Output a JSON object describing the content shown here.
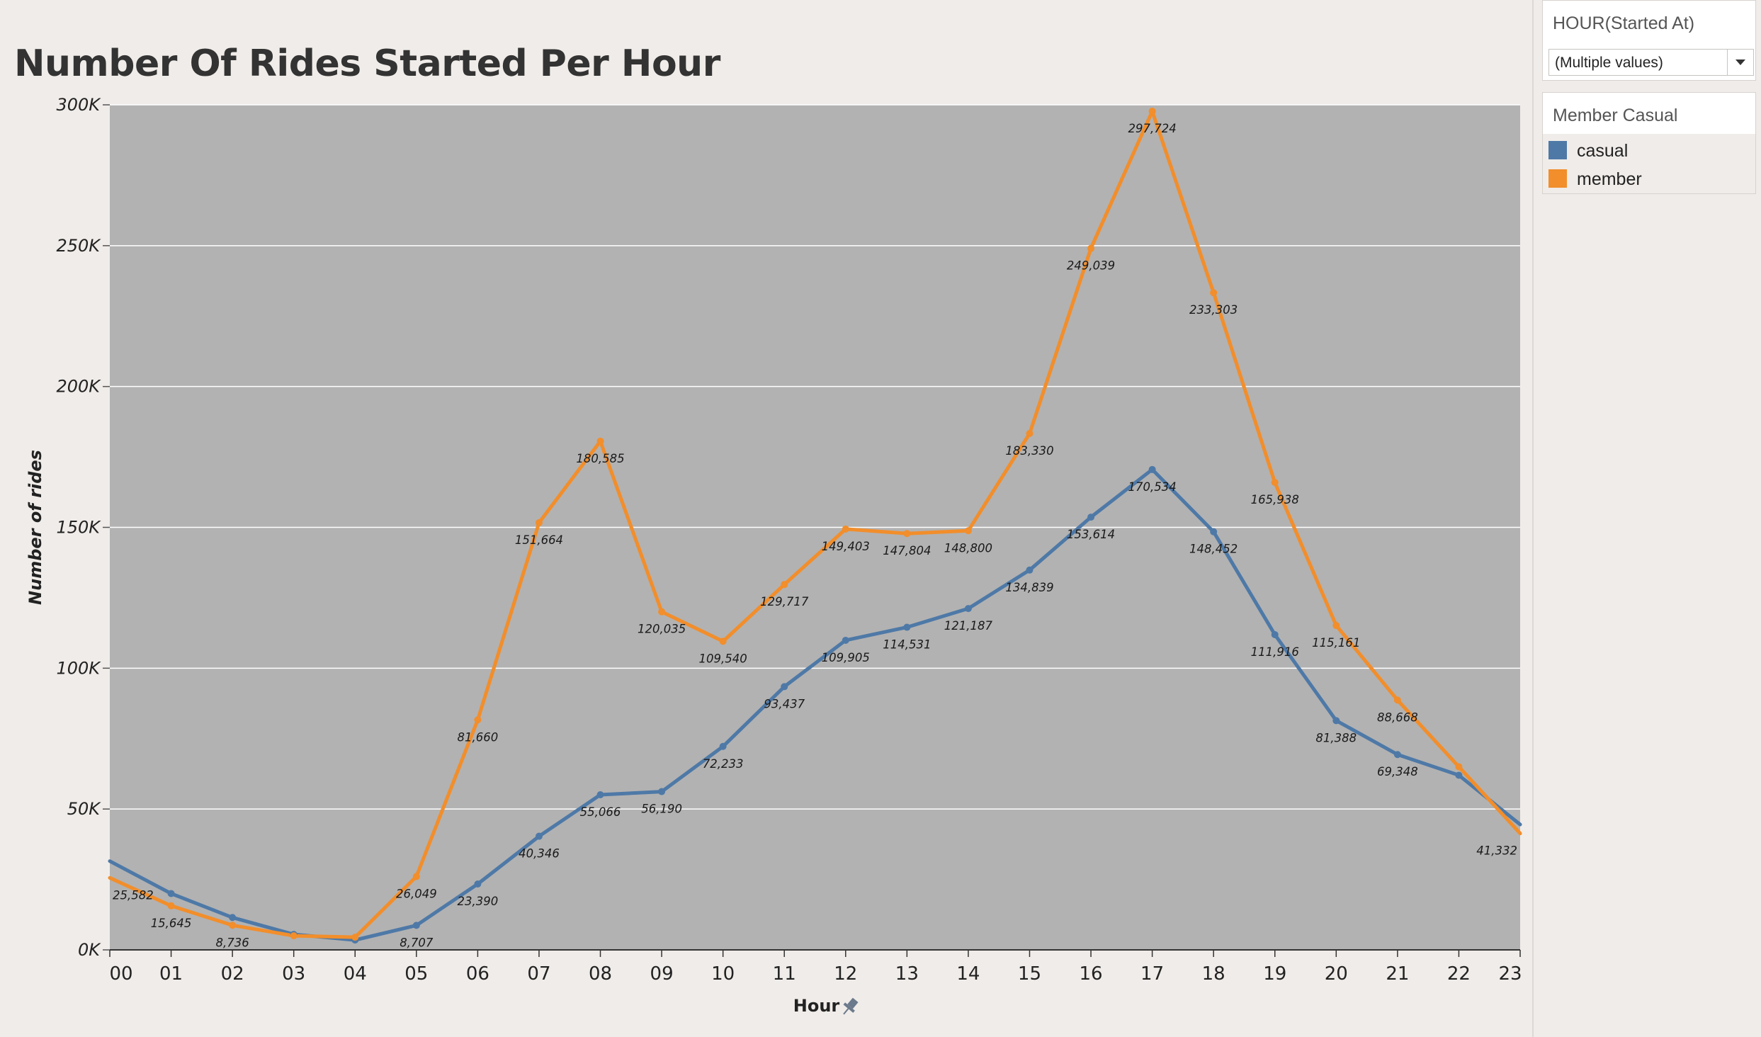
{
  "title": "Number Of Rides Started Per Hour",
  "filter": {
    "title": "HOUR(Started At)",
    "value": "(Multiple values)"
  },
  "legend": {
    "title": "Member Casual",
    "items": [
      {
        "label": "casual",
        "color": "#4e79a7",
        "icon": "square-swatch"
      },
      {
        "label": "member",
        "color": "#f28e2b",
        "icon": "square-swatch"
      }
    ]
  },
  "colors": {
    "plot_background": "#b2b2b2",
    "gridline": "#ffffff",
    "casual": "#4e79a7",
    "member": "#f28e2b"
  },
  "chart_data": {
    "type": "line",
    "title": "Number Of Rides Started Per Hour",
    "xlabel": "Hour",
    "ylabel": "Number of rides",
    "x": [
      "00",
      "01",
      "02",
      "03",
      "04",
      "05",
      "06",
      "07",
      "08",
      "09",
      "10",
      "11",
      "12",
      "13",
      "14",
      "15",
      "16",
      "17",
      "18",
      "19",
      "20",
      "21",
      "22",
      "23"
    ],
    "ylim": [
      0,
      300000
    ],
    "yticks": [
      0,
      50000,
      100000,
      150000,
      200000,
      250000,
      300000
    ],
    "ytick_labels": [
      "0K",
      "50K",
      "100K",
      "150K",
      "200K",
      "250K",
      "300K"
    ],
    "grid": true,
    "legend_position": "right",
    "xlabel_icon": "pin-icon",
    "series": [
      {
        "name": "casual",
        "color": "#4e79a7",
        "values": [
          31500,
          20000,
          11500,
          5500,
          3500,
          8707,
          23390,
          40346,
          55066,
          56190,
          72233,
          93437,
          109905,
          114531,
          121187,
          134839,
          153614,
          170534,
          148452,
          111916,
          81388,
          69348,
          62000,
          44500
        ],
        "labels": [
          "",
          "",
          "",
          "",
          "",
          "8,707",
          "23,390",
          "40,346",
          "55,066",
          "56,190",
          "72,233",
          "93,437",
          "109,905",
          "114,531",
          "121,187",
          "134,839",
          "153,614",
          "170,534",
          "148,452",
          "111,916",
          "81,388",
          "69,348",
          "",
          ""
        ]
      },
      {
        "name": "member",
        "color": "#f28e2b",
        "values": [
          25582,
          15645,
          8736,
          5000,
          4500,
          26049,
          81660,
          151664,
          180585,
          120035,
          109540,
          129717,
          149403,
          147804,
          148800,
          183330,
          249039,
          297724,
          233303,
          165938,
          115161,
          88668,
          65000,
          41332
        ],
        "labels": [
          "25,582",
          "15,645",
          "8,736",
          "",
          "",
          "26,049",
          "81,660",
          "151,664",
          "180,585",
          "120,035",
          "109,540",
          "129,717",
          "149,403",
          "147,804",
          "148,800",
          "183,330",
          "249,039",
          "297,724",
          "233,303",
          "165,938",
          "115,161",
          "88,668",
          "",
          "41,332"
        ]
      }
    ]
  }
}
